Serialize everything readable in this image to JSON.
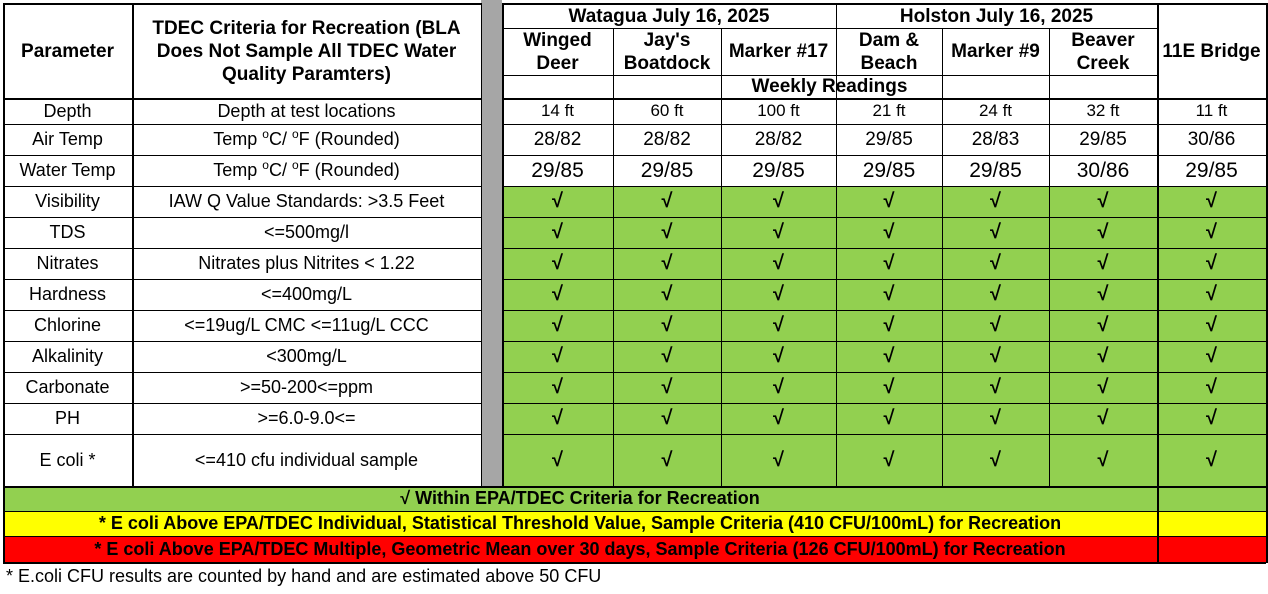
{
  "header": {
    "parameter_label": "Parameter",
    "criteria_title": "TDEC Criteria for Recreation (BLA Does Not Sample All TDEC Water Quality Paramters)",
    "groups": [
      "Watagua July 16, 2025",
      "Holston July 16, 2025"
    ],
    "locations": [
      "Winged Deer",
      "Jay's Boatdock",
      "Marker #17",
      "Dam & Beach",
      "Marker #9",
      "Beaver Creek",
      "11E Bridge"
    ],
    "weekly_readings": "Weekly Readings"
  },
  "rows": [
    {
      "param": "Depth",
      "criteria": "Depth at test locations"
    },
    {
      "param": "Air Temp",
      "criteria_a": "Temp ",
      "criteria_b": "C/ ",
      "criteria_c": "F   (Rounded)",
      "sup": "o"
    },
    {
      "param": "Water Temp",
      "criteria_a": "Temp ",
      "criteria_b": "C/ ",
      "criteria_c": "F   (Rounded)",
      "sup": "o"
    },
    {
      "param": "Visibility",
      "criteria": "IAW Q Value Standards: >3.5 Feet"
    },
    {
      "param": "TDS",
      "criteria": "<=500mg/l"
    },
    {
      "param": "Nitrates",
      "criteria": "Nitrates plus Nitrites < 1.22"
    },
    {
      "param": "Hardness",
      "criteria": "<=400mg/L"
    },
    {
      "param": "Chlorine",
      "criteria": "<=19ug/L CMC  <=11ug/L CCC"
    },
    {
      "param": "Alkalinity",
      "criteria": "<300mg/L"
    },
    {
      "param": "Carbonate",
      "criteria": ">=50-200<=ppm"
    },
    {
      "param": "PH",
      "criteria": ">=6.0-9.0<="
    },
    {
      "param": "E coli *",
      "criteria": "<=410 cfu individual sample"
    }
  ],
  "depth_values": [
    "14 ft",
    "60 ft",
    "100 ft",
    "21 ft",
    "24 ft",
    "32 ft",
    "11 ft"
  ],
  "air_temp_values": [
    "28/82",
    "28/82",
    "28/82",
    "29/85",
    "28/83",
    "29/85",
    "30/86"
  ],
  "water_temp_values": [
    "29/85",
    "29/85",
    "29/85",
    "29/85",
    "29/85",
    "30/86",
    "29/85"
  ],
  "check_mark": "√",
  "legend": {
    "green": "√  Within EPA/TDEC Criteria for Recreation",
    "yellow": "* E coli Above EPA/TDEC Individual, Statistical Threshold Value, Sample Criteria (410 CFU/100mL) for Recreation",
    "red": "* E coli Above EPA/TDEC Multiple, Geometric Mean over 30 days, Sample Criteria (126 CFU/100mL) for Recreation"
  },
  "footnote": "* E.coli CFU results are counted by hand and are estimated above 50 CFU",
  "colors": {
    "green": "#92d050",
    "yellow": "#ffff00",
    "red": "#ff0000",
    "separator": "#a6a6a6"
  }
}
